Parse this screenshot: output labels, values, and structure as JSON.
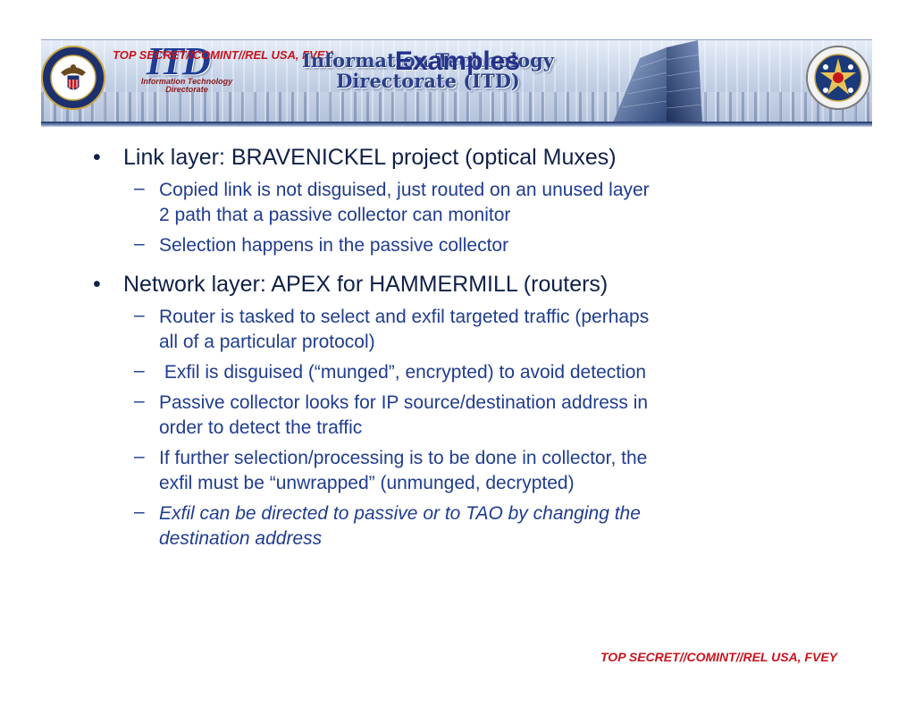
{
  "banner": {
    "classification_top": "TOP SECRET//COMINT//REL USA, FVEY",
    "itd_logo_text": "ITD",
    "itd_logo_sub": [
      "Information Technology",
      "Directorate"
    ],
    "title_lines": [
      "Information Technology",
      "Directorate (ITD)"
    ],
    "left_seal_icon": "nsa-seal-icon",
    "right_seal_icon": "css-seal-icon"
  },
  "slide": {
    "title": "Examples",
    "bullets": [
      {
        "text": "Link layer: BRAVENICKEL project (optical Muxes)",
        "subs": [
          {
            "lines": [
              "Copied link is not disguised, just routed on an unused layer",
              "2 path that a passive collector can monitor"
            ]
          },
          {
            "lines": [
              "Selection happens in the passive collector"
            ]
          }
        ]
      },
      {
        "text": "Network layer: APEX for HAMMERMILL (routers)",
        "subs": [
          {
            "lines": [
              "Router is tasked to select and exfil targeted traffic (perhaps",
              "all of a particular protocol)"
            ]
          },
          {
            "lines": [
              " Exfil is disguised (“munged”, encrypted) to avoid detection"
            ]
          },
          {
            "lines": [
              "Passive collector looks for IP source/destination address in",
              "order to detect the traffic"
            ]
          },
          {
            "lines": [
              "If further selection/processing is to be done in collector, the",
              "exfil must be “unwrapped” (unmunged, decrypted)"
            ]
          },
          {
            "lines": [
              "Exfil can be directed to passive or to TAO by changing the",
              "destination address"
            ]
          }
        ]
      }
    ]
  },
  "footer": {
    "classification_bottom": "TOP SECRET//COMINT//REL USA, FVEY"
  },
  "colors": {
    "classification": "#c8141e",
    "title": "#23318a",
    "level1_text": "#0f2148",
    "level2_text": "#1f3c8f",
    "banner_dark": "#1b2f66"
  }
}
